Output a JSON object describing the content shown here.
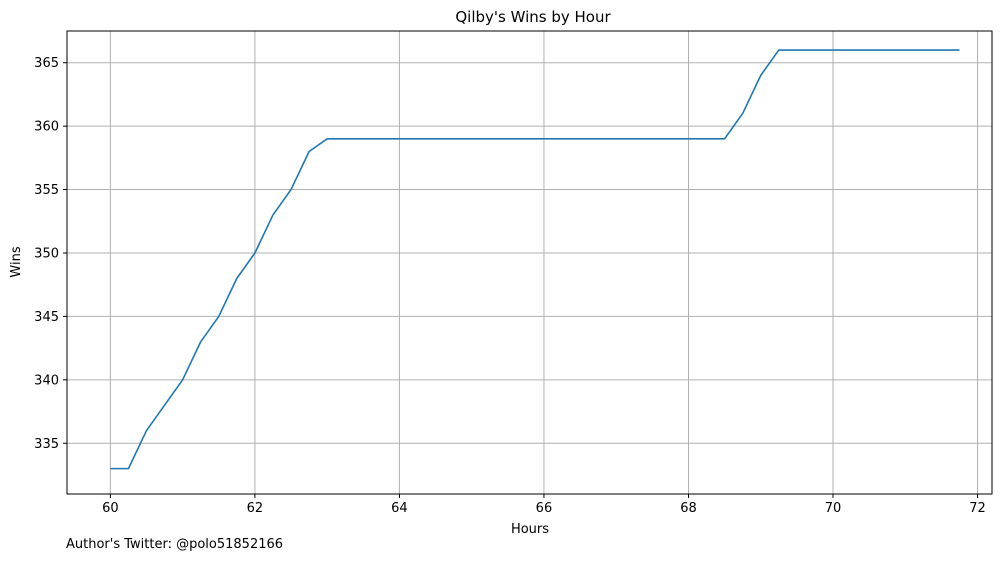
{
  "chart_data": {
    "type": "line",
    "title": "Qilby's Wins by Hour",
    "xlabel": "Hours",
    "ylabel": "Wins",
    "xlim": [
      59.4,
      72.2
    ],
    "ylim": [
      331.0,
      367.5
    ],
    "xticks": [
      60,
      62,
      64,
      66,
      68,
      70,
      72
    ],
    "yticks": [
      335,
      340,
      345,
      350,
      355,
      360,
      365
    ],
    "grid": true,
    "line_color": "#1f77b4",
    "series": [
      {
        "x": [
          60.0,
          60.25,
          60.5,
          60.75,
          61.0,
          61.25,
          61.5,
          61.75,
          62.0,
          62.25,
          62.5,
          62.75,
          63.0,
          68.5,
          68.75,
          69.0,
          69.25,
          71.75
        ],
        "values": [
          333,
          333,
          336,
          338,
          340,
          343,
          345,
          348,
          350,
          353,
          355,
          358,
          359,
          359,
          361,
          364,
          366,
          366
        ]
      }
    ]
  },
  "credit": "Author's Twitter: @polo51852166"
}
